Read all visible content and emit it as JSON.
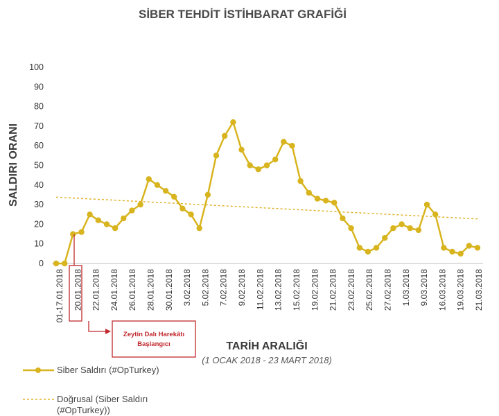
{
  "chart_data": {
    "type": "line",
    "title": "SİBER TEHDİT İSTİHBARAT GRAFİĞİ",
    "xlabel": "TARİH ARALIĞI",
    "xlabel_sub": "(1 OCAK 2018 - 23 MART 2018)",
    "ylabel": "SALDIRI ORANI",
    "ylim": [
      0,
      100
    ],
    "yticks": [
      0,
      10,
      20,
      30,
      40,
      50,
      60,
      70,
      80,
      90,
      100
    ],
    "xtick_labels": [
      "01-17.01.2018",
      "20.01.2018",
      "22.01.2018",
      "24.01.2018",
      "26.01.2018",
      "28.01.2018",
      "30.01.2018",
      "3.02.2018",
      "5.02.2018",
      "7.02.2018",
      "9.02.2018",
      "11.02.2018",
      "13.02.2018",
      "15.02.2018",
      "19.02.2018",
      "21.02.2018",
      "23.02.2018",
      "25.02.2018",
      "27.02.2018",
      "1.03.2018",
      "9.03.2018",
      "16.03.2018",
      "19.03.2018",
      "21.03.2018"
    ],
    "series": [
      {
        "name": "Siber Saldırı (#OpTurkey)",
        "color": "#d8b41e",
        "values": [
          0,
          0,
          15,
          16,
          25,
          22,
          20,
          18,
          23,
          27,
          30,
          43,
          40,
          37,
          34,
          28,
          25,
          18,
          35,
          55,
          65,
          72,
          58,
          50,
          48,
          50,
          53,
          62,
          60,
          42,
          36,
          33,
          32,
          31,
          23,
          18,
          8,
          6,
          8,
          13,
          18,
          20,
          18,
          17,
          30,
          25,
          8,
          6,
          5,
          9,
          8
        ]
      }
    ],
    "trendline": {
      "name": "Doğrusal (Siber Saldırı (#OpTurkey))",
      "color": "#e0b22a",
      "start": 33.8,
      "end": 22.7
    },
    "annotation": {
      "text_line1": "Zeytin Dalı Harekâtı",
      "text_line2": "Başlangıcı",
      "target_label": "20.01.2018",
      "color": "#c0282d"
    },
    "legend": {
      "placement": "bottom-left",
      "series_label": "Siber Saldırı (#OpTurkey)",
      "trend_label_line1": "Doğrusal (Siber Saldırı",
      "trend_label_line2": "(#OpTurkey))"
    },
    "grid": false
  }
}
